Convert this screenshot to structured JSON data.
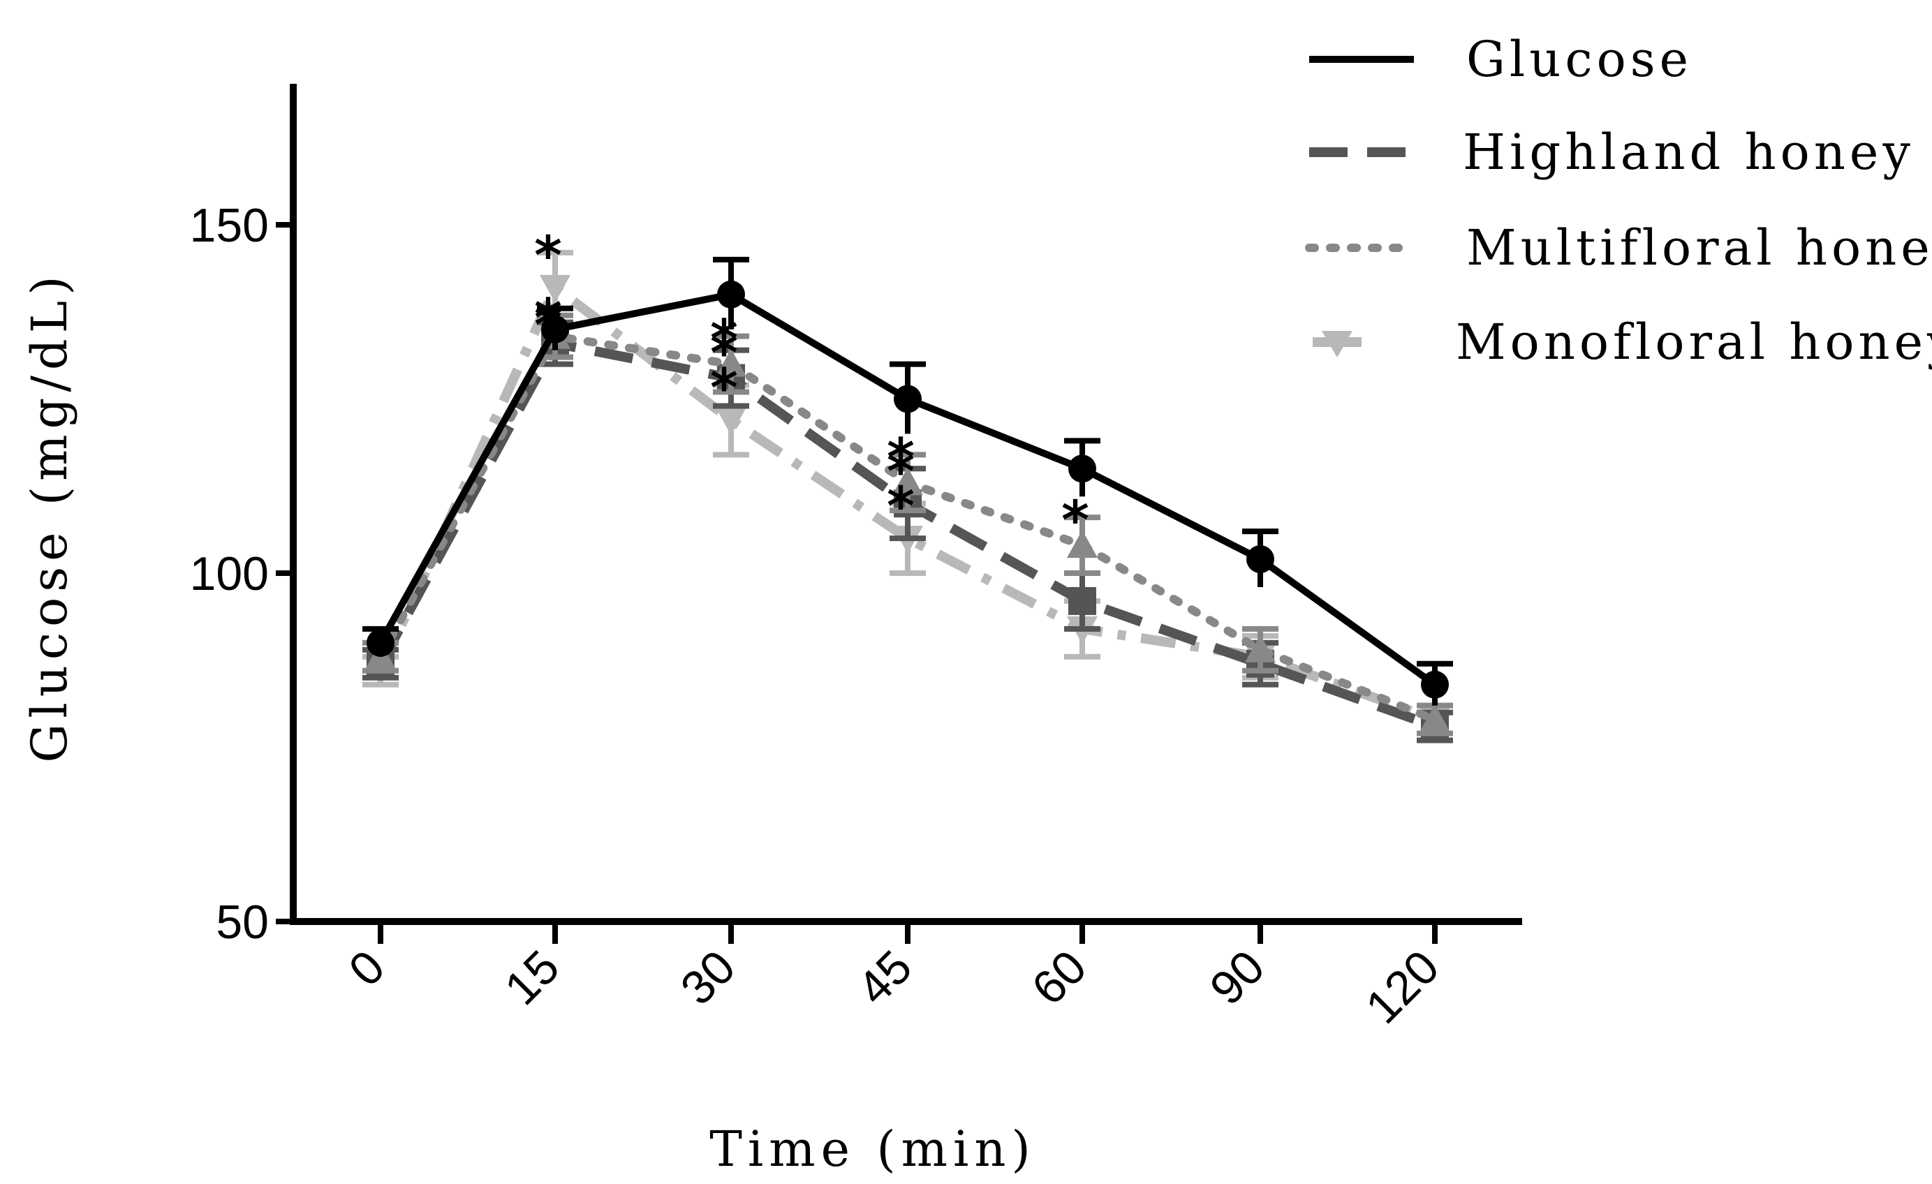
{
  "chart_data": {
    "type": "line",
    "title": "",
    "xlabel": "Time (min)",
    "ylabel": "Glucose (mg/dL)",
    "categories": [
      "0",
      "15",
      "30",
      "45",
      "60",
      "90",
      "120"
    ],
    "yticks": [
      50,
      100,
      150
    ],
    "ylim": [
      50,
      170
    ],
    "legend_position": "top-right",
    "significance_marker": "*",
    "series": [
      {
        "name": "Glucose",
        "color": "#000000",
        "style": "solid",
        "marker": "circle",
        "values": [
          90,
          135,
          140,
          125,
          115,
          102,
          84
        ],
        "errors": [
          2,
          3,
          5,
          5,
          4,
          4,
          3
        ],
        "significant": []
      },
      {
        "name": "Highland honey",
        "color": "#555555",
        "style": "dashed",
        "marker": "square",
        "values": [
          87,
          133,
          128,
          110,
          96,
          87,
          78
        ],
        "errors": [
          2,
          3,
          4,
          5,
          4,
          3,
          2
        ],
        "significant": [
          1,
          2,
          3
        ]
      },
      {
        "name": "Multifloral honey",
        "color": "#888888",
        "style": "dotted",
        "marker": "triangle-up",
        "values": [
          88,
          134,
          130,
          113,
          104,
          89,
          79
        ],
        "errors": [
          2,
          3,
          4,
          4,
          4,
          3,
          2
        ],
        "significant": [
          1,
          2,
          3,
          4
        ]
      },
      {
        "name": "Monofloral honey",
        "color": "#b8b8b8",
        "style": "dashdot",
        "marker": "triangle-down",
        "values": [
          86,
          141,
          122,
          105,
          92,
          88,
          79
        ],
        "errors": [
          2,
          5,
          5,
          5,
          4,
          3,
          2
        ],
        "significant": [
          1,
          2,
          3
        ]
      }
    ]
  }
}
